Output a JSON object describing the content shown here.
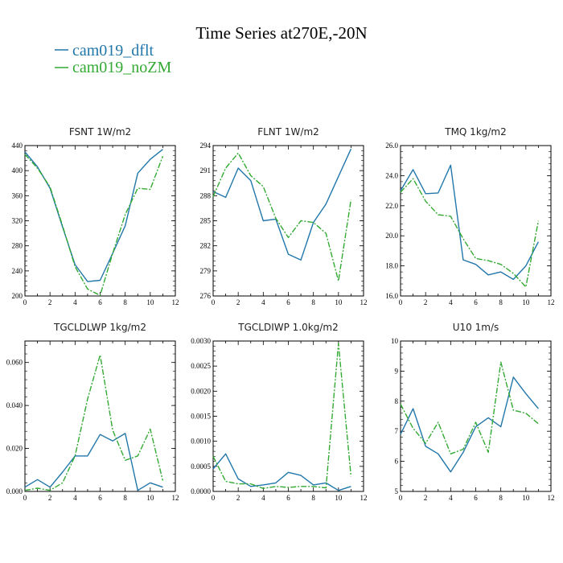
{
  "figure": {
    "title": "Time Series at270E,-20N"
  },
  "legend": [
    {
      "name": "cam019_dflt",
      "color": "#2277aa"
    },
    {
      "name": "cam019_noZM",
      "color": "#33aa33"
    }
  ],
  "chart_data": [
    {
      "type": "line",
      "title": "FSNT   1W/m2",
      "x": [
        0,
        1,
        2,
        3,
        4,
        5,
        6,
        7,
        8,
        9,
        10,
        11
      ],
      "xlim": [
        0,
        12
      ],
      "xticks": [
        "0",
        "2",
        "4",
        "6",
        "8",
        "10",
        "12"
      ],
      "ylim": [
        200,
        440
      ],
      "yticks": [
        "200",
        "240",
        "280",
        "320",
        "360",
        "400",
        "440"
      ],
      "series": [
        {
          "name": "cam019_dflt",
          "values": [
            430,
            406,
            372,
            310,
            250,
            223,
            225,
            268,
            312,
            396,
            418,
            434
          ]
        },
        {
          "name": "cam019_noZM",
          "values": [
            426,
            404,
            374,
            312,
            247,
            211,
            201,
            268,
            330,
            372,
            370,
            423
          ]
        }
      ]
    },
    {
      "type": "line",
      "title": "FLNT   1W/m2",
      "x": [
        0,
        1,
        2,
        3,
        4,
        5,
        6,
        7,
        8,
        9,
        10,
        11
      ],
      "xlim": [
        0,
        12
      ],
      "xticks": [
        "0",
        "2",
        "4",
        "6",
        "8",
        "10",
        "12"
      ],
      "ylim": [
        276,
        294
      ],
      "yticks": [
        "276",
        "279",
        "282",
        "285",
        "288",
        "291",
        "294"
      ],
      "series": [
        {
          "name": "cam019_dflt",
          "values": [
            288.5,
            287.8,
            291.3,
            289.8,
            285.0,
            285.2,
            281.0,
            280.3,
            284.8,
            287.0,
            290.3,
            293.6
          ]
        },
        {
          "name": "cam019_noZM",
          "values": [
            287.9,
            291.3,
            293.1,
            290.4,
            289.1,
            285.3,
            283.0,
            285.0,
            284.8,
            283.5,
            277.8,
            287.5
          ]
        }
      ]
    },
    {
      "type": "line",
      "title": "TMQ   1kg/m2",
      "x": [
        0,
        1,
        2,
        3,
        4,
        5,
        6,
        7,
        8,
        9,
        10,
        11
      ],
      "xlim": [
        0,
        12
      ],
      "xticks": [
        "0",
        "2",
        "4",
        "6",
        "8",
        "10",
        "12"
      ],
      "ylim": [
        16.0,
        26.0
      ],
      "yticks": [
        "16.0",
        "18.0",
        "20.0",
        "22.0",
        "24.0",
        "26.0"
      ],
      "series": [
        {
          "name": "cam019_dflt",
          "values": [
            23.0,
            24.4,
            22.8,
            22.85,
            24.7,
            18.4,
            18.1,
            17.4,
            17.6,
            17.1,
            18.0,
            19.6
          ]
        },
        {
          "name": "cam019_noZM",
          "values": [
            22.9,
            23.8,
            22.3,
            21.4,
            21.3,
            19.8,
            18.5,
            18.35,
            18.1,
            17.5,
            16.6,
            21.0
          ]
        }
      ]
    },
    {
      "type": "line",
      "title": "TGCLDLWP   1kg/m2",
      "x": [
        0,
        1,
        2,
        3,
        4,
        5,
        6,
        7,
        8,
        9,
        10,
        11
      ],
      "xlim": [
        0,
        12
      ],
      "xticks": [
        "0",
        "2",
        "4",
        "6",
        "8",
        "10",
        "12"
      ],
      "ylim": [
        0.0,
        0.07
      ],
      "yticks": [
        "0.000",
        "0.020",
        "0.040",
        "0.060"
      ],
      "ytick_values": [
        0.0,
        0.02,
        0.04,
        0.06
      ],
      "series": [
        {
          "name": "cam019_dflt",
          "values": [
            0.002,
            0.0055,
            0.002,
            0.009,
            0.0165,
            0.0165,
            0.0265,
            0.0235,
            0.027,
            0.0005,
            0.004,
            0.002
          ]
        },
        {
          "name": "cam019_noZM",
          "values": [
            0.0005,
            0.0015,
            0.0005,
            0.004,
            0.0165,
            0.043,
            0.0635,
            0.0285,
            0.0145,
            0.0165,
            0.029,
            0.005
          ]
        }
      ]
    },
    {
      "type": "line",
      "title": "TGCLDIWP   1.0kg/m2",
      "x": [
        0,
        1,
        2,
        3,
        4,
        5,
        6,
        7,
        8,
        9,
        10,
        11
      ],
      "xlim": [
        0,
        12
      ],
      "xticks": [
        "0",
        "2",
        "4",
        "6",
        "8",
        "10",
        "12"
      ],
      "ylim": [
        0.0,
        0.003
      ],
      "yticks": [
        "0.0000",
        "0.0005",
        "0.0010",
        "0.0015",
        "0.0020",
        "0.0025",
        "0.0030"
      ],
      "series": [
        {
          "name": "cam019_dflt",
          "values": [
            0.00045,
            0.00075,
            0.00025,
            0.0001,
            0.00013,
            0.00017,
            0.00038,
            0.00032,
            0.00013,
            0.00017,
            2e-05,
            0.0001
          ]
        },
        {
          "name": "cam019_noZM",
          "values": [
            0.0007,
            0.0002,
            0.00015,
            0.00015,
            6e-05,
            0.0001,
            8e-05,
            0.0001,
            0.0001,
            7e-05,
            0.00295,
            0.0003
          ]
        }
      ]
    },
    {
      "type": "line",
      "title": "U10   1m/s",
      "x": [
        0,
        1,
        2,
        3,
        4,
        5,
        6,
        7,
        8,
        9,
        10,
        11
      ],
      "xlim": [
        0,
        12
      ],
      "xticks": [
        "0",
        "2",
        "4",
        "6",
        "8",
        "10",
        "12"
      ],
      "ylim": [
        5,
        10
      ],
      "yticks": [
        "5",
        "6",
        "7",
        "8",
        "9",
        "10"
      ],
      "series": [
        {
          "name": "cam019_dflt",
          "values": [
            6.9,
            7.75,
            6.5,
            6.25,
            5.65,
            6.3,
            7.15,
            7.45,
            7.15,
            8.8,
            8.25,
            7.75
          ]
        },
        {
          "name": "cam019_noZM",
          "values": [
            7.9,
            7.1,
            6.6,
            7.3,
            6.25,
            6.4,
            7.3,
            6.3,
            9.3,
            7.7,
            7.6,
            7.25
          ]
        }
      ]
    }
  ]
}
